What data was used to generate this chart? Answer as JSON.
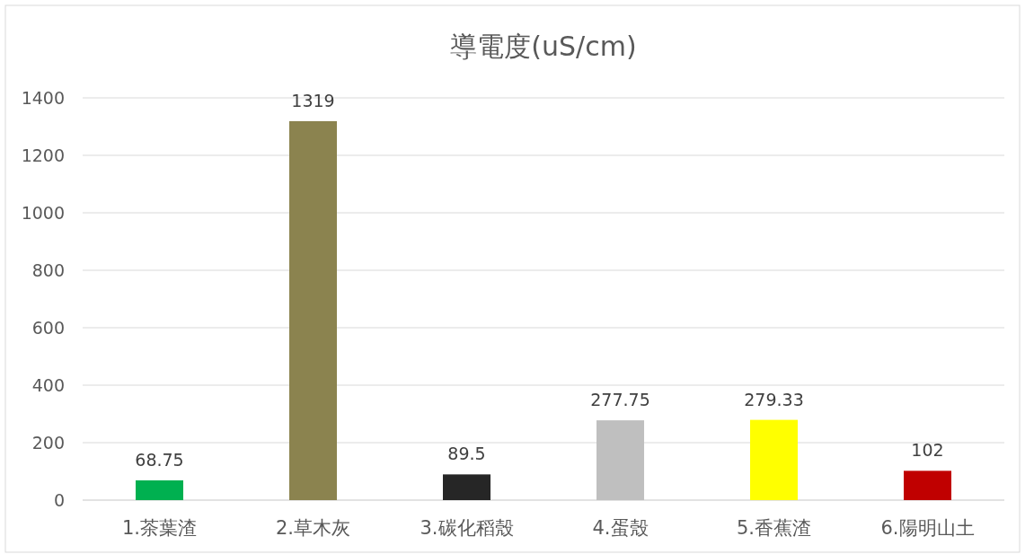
{
  "chart_data": {
    "type": "bar",
    "title": "導電度(uS/cm)",
    "categories": [
      "1.茶葉渣",
      "2.草木灰",
      "3.碳化稻殼",
      "4.蛋殼",
      "5.香蕉渣",
      "6.陽明山土"
    ],
    "values": [
      68.75,
      1319,
      89.5,
      277.75,
      279.33,
      102
    ],
    "colors": [
      "#00b050",
      "#8b834f",
      "#262626",
      "#bfbfbf",
      "#ffff00",
      "#c00000"
    ],
    "ylim": [
      0,
      1400
    ],
    "yticks": [
      0,
      200,
      400,
      600,
      800,
      1000,
      1200,
      1400
    ],
    "grid": "y",
    "data_labels": true
  }
}
